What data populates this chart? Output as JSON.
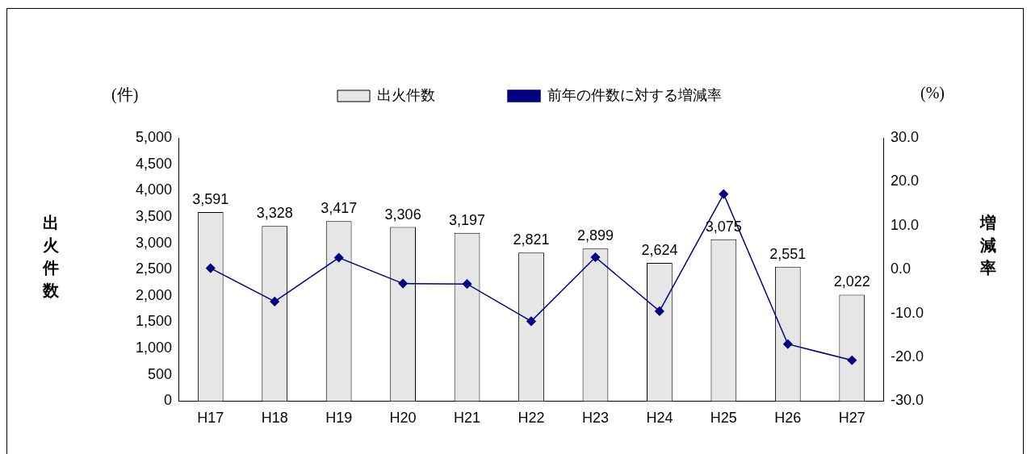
{
  "chart_data": {
    "type": "bar",
    "categories": [
      "H17",
      "H18",
      "H19",
      "H20",
      "H21",
      "H22",
      "H23",
      "H24",
      "H25",
      "H26",
      "H27"
    ],
    "ylabel": "出火件数",
    "y2label": "増減率",
    "annotations": [
      "(件)",
      "(%)"
    ],
    "series": [
      {
        "name": "出火件数",
        "color": "#e6e6e6",
        "values": [
          3591,
          3328,
          3417,
          3306,
          3197,
          2821,
          2899,
          2624,
          3075,
          2551,
          2022
        ],
        "value_labels": [
          "3,591",
          "3,328",
          "3,417",
          "3,306",
          "3,197",
          "2,821",
          "2,899",
          "2,624",
          "3,075",
          "2,551",
          "2,022"
        ]
      },
      {
        "name": "前年の件数に対する増減率",
        "type": "line",
        "axis": "y2",
        "color": "#000080",
        "marker": "diamond",
        "values": [
          0.3,
          -7.3,
          2.7,
          -3.2,
          -3.3,
          -11.8,
          2.8,
          -9.5,
          17.2,
          -17.0,
          -20.7
        ]
      }
    ],
    "ylim": [
      0,
      5000
    ],
    "yticks": [
      0,
      {
        "value": 500,
        "label": "500"
      },
      {
        "value": 1000,
        "label": "1,000"
      },
      {
        "value": 1500,
        "label": "1,500"
      },
      {
        "value": 2000,
        "label": "2,000"
      },
      {
        "value": 2500,
        "label": "2,500"
      },
      {
        "value": 3000,
        "label": "3,000"
      },
      {
        "value": 3500,
        "label": "3,500"
      },
      {
        "value": 4000,
        "label": "4,000"
      },
      {
        "value": 4500,
        "label": "4,500"
      },
      {
        "value": 5000,
        "label": "5,000"
      }
    ],
    "y2lim": [
      -30,
      30
    ],
    "y2ticks": [
      {
        "value": -30,
        "label": "-30.0"
      },
      {
        "value": -20,
        "label": "-20.0"
      },
      {
        "value": -10,
        "label": "-10.0"
      },
      {
        "value": 0,
        "label": "0.0"
      },
      {
        "value": 10,
        "label": "10.0"
      },
      {
        "value": 20,
        "label": "20.0"
      },
      {
        "value": 30,
        "label": "30.0"
      }
    ],
    "grid": false,
    "legend": "top"
  }
}
